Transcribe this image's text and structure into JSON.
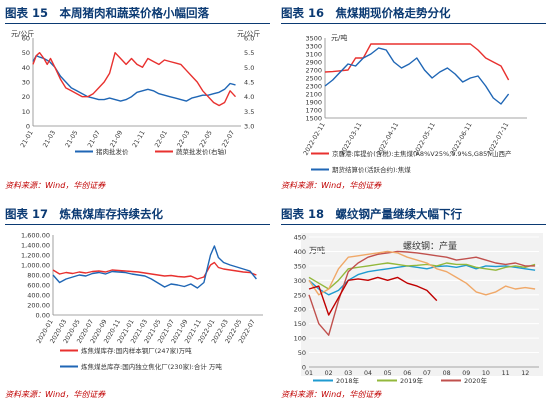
{
  "colors": {
    "red": "#e8312f",
    "blue": "#1f66b5",
    "navy": "#0b3a73",
    "source": "#c00000"
  },
  "panels": [
    {
      "title": "图表 15　本周猪肉和蔬菜价格小幅回落",
      "source": "资料来源：Wind，华创证券",
      "unit_left": "元/公斤",
      "unit_right": "元/公斤"
    },
    {
      "title": "图表 16　焦煤期现价格走势分化",
      "source": "资料来源：Wind，华创证券",
      "unit_left": "元/吨"
    },
    {
      "title": "图表 17　炼焦煤库存持续去化",
      "source": "资料来源：Wind，华创证券"
    },
    {
      "title": "图表 18　螺纹钢产量继续大幅下行",
      "source": "资料来源：Wind，华创证券",
      "unit_left": "万吨",
      "chart_title": "螺纹钢：产量"
    }
  ],
  "chart_data": [
    {
      "type": "line",
      "ylim": [
        0,
        60
      ],
      "y2lim": [
        3.0,
        6.0
      ],
      "yticks": [
        0,
        10,
        20,
        30,
        40,
        50,
        60
      ],
      "y2ticks": [
        3.0,
        3.5,
        4.0,
        4.5,
        5.0,
        5.5,
        6.0
      ],
      "xticks": [
        "21-01",
        "21-03",
        "21-05",
        "21-07",
        "21-09",
        "21-11",
        "22-01",
        "22-03",
        "22-05",
        "22-07"
      ],
      "series": [
        {
          "name": "猪肉批发价",
          "axis": "left",
          "color": "#1f66b5",
          "x": [
            0,
            0.3,
            0.6,
            1,
            1.5,
            2,
            2.5,
            3,
            3.5,
            4,
            4.5,
            5,
            5.5,
            6,
            6.5,
            7,
            7.5,
            8,
            8.5,
            9,
            9.5,
            10,
            10.5,
            11,
            11.5,
            12,
            12.5,
            13,
            13.5,
            14,
            14.5,
            15,
            15.5,
            16,
            16.5,
            17,
            17.5,
            18,
            18.5
          ],
          "y": [
            44,
            48,
            47,
            46,
            44,
            40,
            34,
            30,
            26,
            24,
            22,
            20,
            19,
            18,
            18,
            19,
            18,
            17,
            18,
            20,
            23,
            24,
            25,
            24,
            22,
            21,
            20,
            19,
            18,
            17,
            19,
            20,
            21,
            21,
            22,
            23,
            25,
            29,
            28
          ]
        },
        {
          "name": "蔬菜批发价(右轴)",
          "axis": "right",
          "color": "#e8312f",
          "x": [
            0,
            0.3,
            0.6,
            1,
            1.3,
            1.6,
            2,
            2.5,
            3,
            3.5,
            4,
            4.5,
            5,
            5.5,
            6,
            6.5,
            7,
            7.5,
            8,
            8.5,
            9,
            9.5,
            10,
            10.5,
            11,
            11.5,
            12,
            12.5,
            13,
            13.5,
            14,
            14.5,
            15,
            15.5,
            16,
            16.5,
            17,
            17.5,
            18,
            18.5
          ],
          "y": [
            5.1,
            5.4,
            5.5,
            5.3,
            5.1,
            5.3,
            5.0,
            4.6,
            4.3,
            4.2,
            4.1,
            4.0,
            4.0,
            4.1,
            4.3,
            4.5,
            4.8,
            5.5,
            5.3,
            5.1,
            5.3,
            5.1,
            5.0,
            5.3,
            5.2,
            5.1,
            5.25,
            5.2,
            5.15,
            5.1,
            4.9,
            4.7,
            4.5,
            4.2,
            4.0,
            3.8,
            3.7,
            3.8,
            4.2,
            4.0
          ]
        }
      ]
    },
    {
      "type": "line",
      "ylim": [
        1500,
        3500
      ],
      "yticks": [
        1500,
        1700,
        1900,
        2100,
        2300,
        2500,
        2700,
        2900,
        3100,
        3300,
        3500
      ],
      "xticks": [
        "2022-02-11",
        "2022-03-11",
        "2022-04-11",
        "2022-05-11",
        "2022-06-11",
        "2022-07-11"
      ],
      "series": [
        {
          "name": "京唐港:库提价(含税):主焦煤(A8%V25%,0.9%S,G85):山西产",
          "color": "#e8312f",
          "x": [
            0,
            0.25,
            0.5,
            0.75,
            1,
            1.25,
            1.5,
            1.75,
            2,
            2.25,
            2.5,
            2.75,
            3,
            3.25,
            3.5,
            3.75,
            4,
            4.25,
            4.5,
            4.75,
            5,
            5.25,
            5.5,
            5.75,
            6
          ],
          "y": [
            2650,
            2660,
            2680,
            2700,
            3000,
            3000,
            3350,
            3350,
            3350,
            3350,
            3350,
            3350,
            3350,
            3350,
            3350,
            3350,
            3350,
            3350,
            3350,
            3350,
            3200,
            3000,
            2900,
            2800,
            2450
          ]
        },
        {
          "name": "期货结算价(活跃合约):焦煤",
          "color": "#1f66b5",
          "x": [
            0,
            0.25,
            0.5,
            0.75,
            1,
            1.25,
            1.5,
            1.75,
            2,
            2.25,
            2.5,
            2.75,
            3,
            3.25,
            3.5,
            3.75,
            4,
            4.25,
            4.5,
            4.75,
            5,
            5.25,
            5.5,
            5.75,
            6
          ],
          "y": [
            2300,
            2450,
            2650,
            2850,
            2800,
            3000,
            3100,
            3250,
            3200,
            2900,
            2750,
            2850,
            3000,
            2700,
            2500,
            2650,
            2750,
            2600,
            2400,
            2500,
            2550,
            2300,
            2000,
            1850,
            2100
          ]
        }
      ]
    },
    {
      "type": "line",
      "ylim": [
        0,
        1600
      ],
      "yticks": [
        0,
        200,
        400,
        600,
        800,
        1000,
        1200,
        1400,
        1600
      ],
      "ytick_labels": [
        "0.00",
        "200.00",
        "400.00",
        "600.00",
        "800.00",
        "1,000.00",
        "1,200.00",
        "1,400.00",
        "1,600.00"
      ],
      "xticks": [
        "2020-01",
        "2020-03",
        "2020-05",
        "2020-07",
        "2020-09",
        "2020-11",
        "2021-01",
        "2021-03",
        "2021-05",
        "2021-07",
        "2021-09",
        "2021-11",
        "2022-01",
        "2022-03",
        "2022-05",
        "2022-07"
      ],
      "series": [
        {
          "name": "炼焦煤库存:国内样本钢厂(247家)万吨",
          "color": "#e8312f",
          "x": [
            0,
            0.5,
            1,
            1.5,
            2,
            2.5,
            3,
            3.5,
            4,
            4.5,
            5,
            5.5,
            6,
            6.5,
            7,
            7.5,
            8,
            8.5,
            9,
            9.5,
            10,
            10.5,
            11,
            11.5,
            12,
            12.3,
            12.6,
            13,
            13.5,
            14,
            14.5,
            15,
            15.5
          ],
          "y": [
            900,
            820,
            850,
            830,
            860,
            840,
            870,
            880,
            860,
            900,
            890,
            880,
            870,
            860,
            840,
            820,
            800,
            780,
            790,
            770,
            760,
            780,
            720,
            760,
            1000,
            1050,
            950,
            920,
            900,
            880,
            860,
            850,
            800
          ]
        },
        {
          "name": "炼焦煤总库存:国内独立焦化厂(230家):合计 万吨",
          "color": "#1f66b5",
          "x": [
            0,
            0.5,
            1,
            1.5,
            2,
            2.5,
            3,
            3.5,
            4,
            4.5,
            5,
            5.5,
            6,
            6.5,
            7,
            7.5,
            8,
            8.5,
            9,
            9.5,
            10,
            10.5,
            11,
            11.5,
            12,
            12.3,
            12.6,
            13,
            13.5,
            14,
            14.5,
            15,
            15.5
          ],
          "y": [
            800,
            650,
            720,
            760,
            800,
            780,
            830,
            850,
            820,
            870,
            860,
            850,
            820,
            800,
            780,
            720,
            640,
            560,
            620,
            600,
            570,
            620,
            540,
            650,
            1200,
            1380,
            1150,
            1050,
            1000,
            960,
            920,
            880,
            720
          ]
        }
      ]
    },
    {
      "type": "line",
      "ylim": [
        0,
        450
      ],
      "yticks": [
        0,
        50,
        100,
        150,
        200,
        250,
        300,
        350,
        400,
        450
      ],
      "xticks": [
        "01",
        "02",
        "03",
        "04",
        "05",
        "06",
        "07",
        "08",
        "09",
        "10",
        "11",
        "12"
      ],
      "series": [
        {
          "name": "2018年",
          "color": "#1f9bd0",
          "x": [
            1,
            1.5,
            2,
            2.5,
            3,
            3.5,
            4,
            4.5,
            5,
            5.5,
            6,
            6.5,
            7,
            7.5,
            8,
            8.5,
            9,
            9.5,
            10,
            10.5,
            11,
            11.5,
            12,
            12.5
          ],
          "y": [
            300,
            270,
            250,
            265,
            300,
            320,
            330,
            335,
            340,
            345,
            350,
            345,
            340,
            348,
            350,
            345,
            352,
            340,
            350,
            348,
            350,
            345,
            340,
            335
          ]
        },
        {
          "name": "2019年",
          "color": "#93b83c",
          "x": [
            1,
            1.5,
            2,
            2.5,
            3,
            3.5,
            4,
            4.5,
            5,
            5.5,
            6,
            6.5,
            7,
            7.5,
            8,
            8.5,
            9,
            9.5,
            10,
            10.5,
            11,
            11.5,
            12,
            12.5
          ],
          "y": [
            310,
            290,
            270,
            300,
            340,
            345,
            350,
            355,
            360,
            355,
            350,
            352,
            355,
            350,
            360,
            355,
            355,
            345,
            340,
            335,
            345,
            350,
            345,
            355
          ]
        },
        {
          "name": "2020年",
          "color": "#c0504d",
          "x": [
            1,
            1.5,
            2,
            2.5,
            3,
            3.5,
            4,
            4.5,
            5,
            5.5,
            6,
            6.5,
            7,
            7.5,
            8,
            8.5,
            9,
            9.5,
            10,
            10.5,
            11,
            11.5,
            12,
            12.5
          ],
          "y": [
            250,
            150,
            110,
            230,
            330,
            360,
            380,
            390,
            395,
            400,
            398,
            395,
            390,
            385,
            380,
            370,
            375,
            380,
            370,
            360,
            355,
            360,
            350,
            350
          ]
        },
        {
          "name": "2021年",
          "color": "#f0a868",
          "x": [
            1,
            1.5,
            2,
            2.5,
            3,
            3.5,
            4,
            4.5,
            5,
            5.5,
            6,
            6.5,
            7,
            7.5,
            8,
            8.5,
            9,
            9.5,
            10,
            10.5,
            11,
            11.5,
            12,
            12.5
          ],
          "y": [
            300,
            250,
            270,
            340,
            380,
            385,
            390,
            395,
            400,
            395,
            380,
            370,
            360,
            340,
            330,
            310,
            290,
            260,
            250,
            260,
            280,
            270,
            275,
            270
          ]
        },
        {
          "name": "2022年",
          "color": "#c00000",
          "x": [
            1,
            1.5,
            2,
            2.5,
            3,
            3.5,
            4,
            4.5,
            5,
            5.5,
            6,
            6.5,
            7,
            7.5
          ],
          "y": [
            270,
            280,
            180,
            240,
            300,
            305,
            300,
            310,
            300,
            310,
            290,
            280,
            265,
            230
          ]
        }
      ]
    }
  ]
}
